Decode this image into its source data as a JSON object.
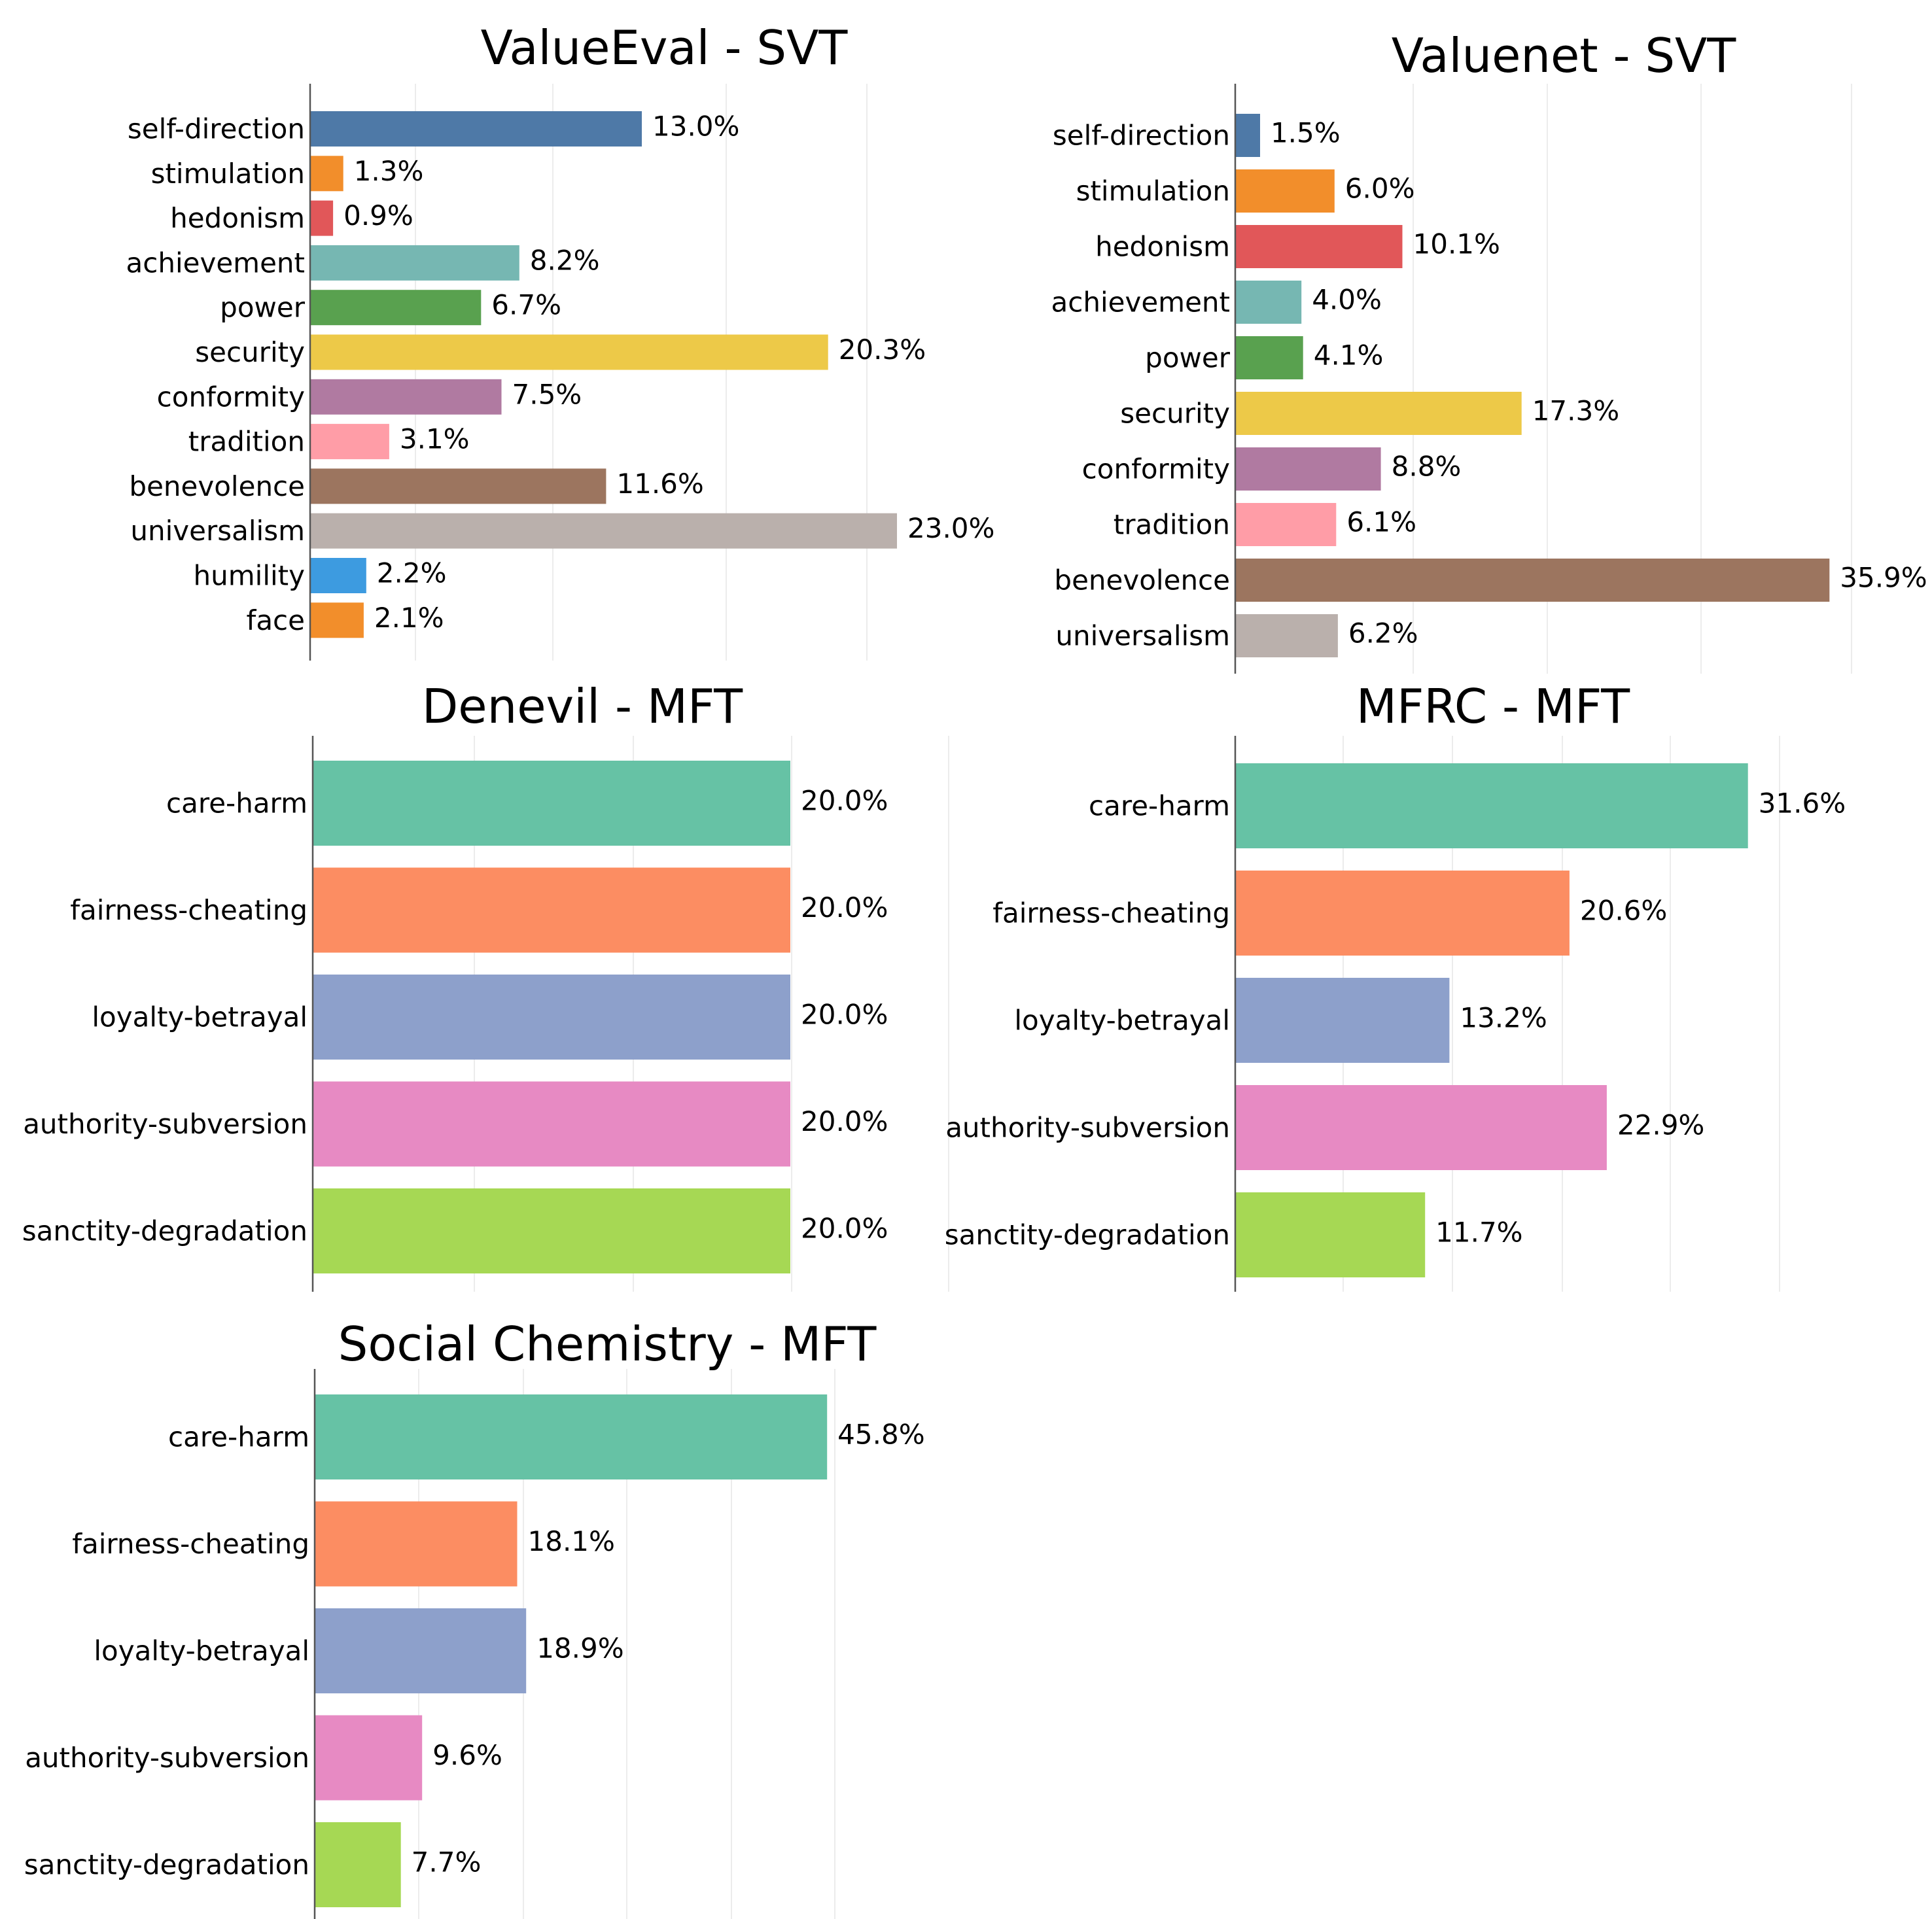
{
  "chart_data": [
    {
      "type": "bar",
      "orientation": "horizontal",
      "title": "ValueEval - SVT",
      "xlabel": "",
      "ylabel": "",
      "grid": true,
      "xlim": [
        0,
        25
      ],
      "categories": [
        "self-direction",
        "stimulation",
        "hedonism",
        "achievement",
        "power",
        "security",
        "conformity",
        "tradition",
        "benevolence",
        "universalism",
        "humility",
        "face"
      ],
      "values": [
        13.0,
        1.3,
        0.9,
        8.2,
        6.7,
        20.3,
        7.5,
        3.1,
        11.6,
        23.0,
        2.2,
        2.1
      ],
      "value_labels": [
        "13.0%",
        "1.3%",
        "0.9%",
        "8.2%",
        "6.7%",
        "20.3%",
        "7.5%",
        "3.1%",
        "11.6%",
        "23.0%",
        "2.2%",
        "2.1%"
      ],
      "colors": [
        "#4e79a7",
        "#f28e2b",
        "#e15759",
        "#76b7b2",
        "#59a14f",
        "#edc948",
        "#b07aa1",
        "#ff9da7",
        "#9c755f",
        "#bab0ac",
        "#3d9be0",
        "#f28e2b"
      ]
    },
    {
      "type": "bar",
      "orientation": "horizontal",
      "title": "Valuenet - SVT",
      "xlabel": "",
      "ylabel": "",
      "grid": true,
      "xlim": [
        0,
        38
      ],
      "categories": [
        "self-direction",
        "stimulation",
        "hedonism",
        "achievement",
        "power",
        "security",
        "conformity",
        "tradition",
        "benevolence",
        "universalism"
      ],
      "values": [
        1.5,
        6.0,
        10.1,
        4.0,
        4.1,
        17.3,
        8.8,
        6.1,
        35.9,
        6.2
      ],
      "value_labels": [
        "1.5%",
        "6.0%",
        "10.1%",
        "4.0%",
        "4.1%",
        "17.3%",
        "8.8%",
        "6.1%",
        "35.9%",
        "6.2%"
      ],
      "colors": [
        "#4e79a7",
        "#f28e2b",
        "#e15759",
        "#76b7b2",
        "#59a14f",
        "#edc948",
        "#b07aa1",
        "#ff9da7",
        "#9c755f",
        "#bab0ac"
      ]
    },
    {
      "type": "bar",
      "orientation": "horizontal",
      "title": "Denevil - MFT",
      "xlabel": "",
      "ylabel": "",
      "grid": true,
      "xlim": [
        0,
        25
      ],
      "categories": [
        "care-harm",
        "fairness-cheating",
        "loyalty-betrayal",
        "authority-subversion",
        "sanctity-degradation"
      ],
      "values": [
        20.0,
        20.0,
        20.0,
        20.0,
        20.0
      ],
      "value_labels": [
        "20.0%",
        "20.0%",
        "20.0%",
        "20.0%",
        "20.0%"
      ],
      "colors": [
        "#66c2a5",
        "#fc8d62",
        "#8da0cb",
        "#e78ac3",
        "#a6d854"
      ]
    },
    {
      "type": "bar",
      "orientation": "horizontal",
      "title": "MFRC - MFT",
      "xlabel": "",
      "ylabel": "",
      "grid": true,
      "xlim": [
        0,
        35
      ],
      "categories": [
        "care-harm",
        "fairness-cheating",
        "loyalty-betrayal",
        "authority-subversion",
        "sanctity-degradation"
      ],
      "values": [
        31.6,
        20.6,
        13.2,
        22.9,
        11.7
      ],
      "value_labels": [
        "31.6%",
        "20.6%",
        "13.2%",
        "22.9%",
        "11.7%"
      ],
      "colors": [
        "#66c2a5",
        "#fc8d62",
        "#8da0cb",
        "#e78ac3",
        "#a6d854"
      ]
    },
    {
      "type": "bar",
      "orientation": "horizontal",
      "title": "Social Chemistry - MFT",
      "xlabel": "",
      "ylabel": "",
      "grid": true,
      "xlim": [
        0,
        50
      ],
      "categories": [
        "care-harm",
        "fairness-cheating",
        "loyalty-betrayal",
        "authority-subversion",
        "sanctity-degradation"
      ],
      "values": [
        45.8,
        18.1,
        18.9,
        9.6,
        7.7
      ],
      "value_labels": [
        "45.8%",
        "18.1%",
        "18.9%",
        "9.6%",
        "7.7%"
      ],
      "colors": [
        "#66c2a5",
        "#fc8d62",
        "#8da0cb",
        "#e78ac3",
        "#a6d854"
      ]
    }
  ]
}
